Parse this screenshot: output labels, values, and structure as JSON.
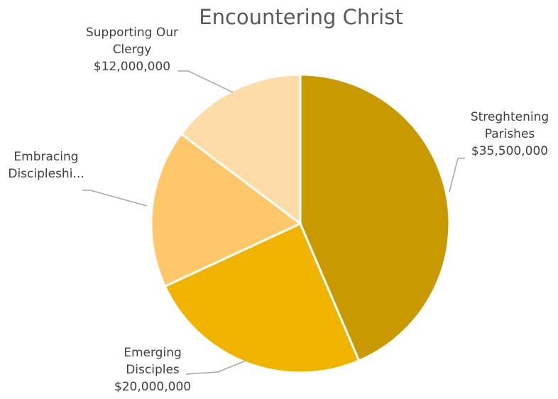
{
  "chart_data": {
    "type": "pie",
    "title": "Encountering Christ",
    "categories": [
      "Streghtening Parishes",
      "Emerging Disciples",
      "Embracing Discipleshi...",
      "Supporting Our Clergy"
    ],
    "values": [
      35500000,
      20000000,
      14000000,
      12000000
    ],
    "colors": [
      "#C89A00",
      "#F0B400",
      "#FDC76A",
      "#FEDCA8"
    ],
    "labels": [
      {
        "lines": [
          "Streghtening",
          "Parishes",
          "$35,500,000"
        ]
      },
      {
        "lines": [
          "Emerging",
          "Disciples",
          "$20,000,000"
        ]
      },
      {
        "lines": [
          "Embracing",
          "Discipleshi..."
        ]
      },
      {
        "lines": [
          "Supporting Our",
          "Clergy",
          "$12,000,000"
        ]
      }
    ],
    "start_angle_deg": 0,
    "direction": "clockwise",
    "legend": "none"
  }
}
